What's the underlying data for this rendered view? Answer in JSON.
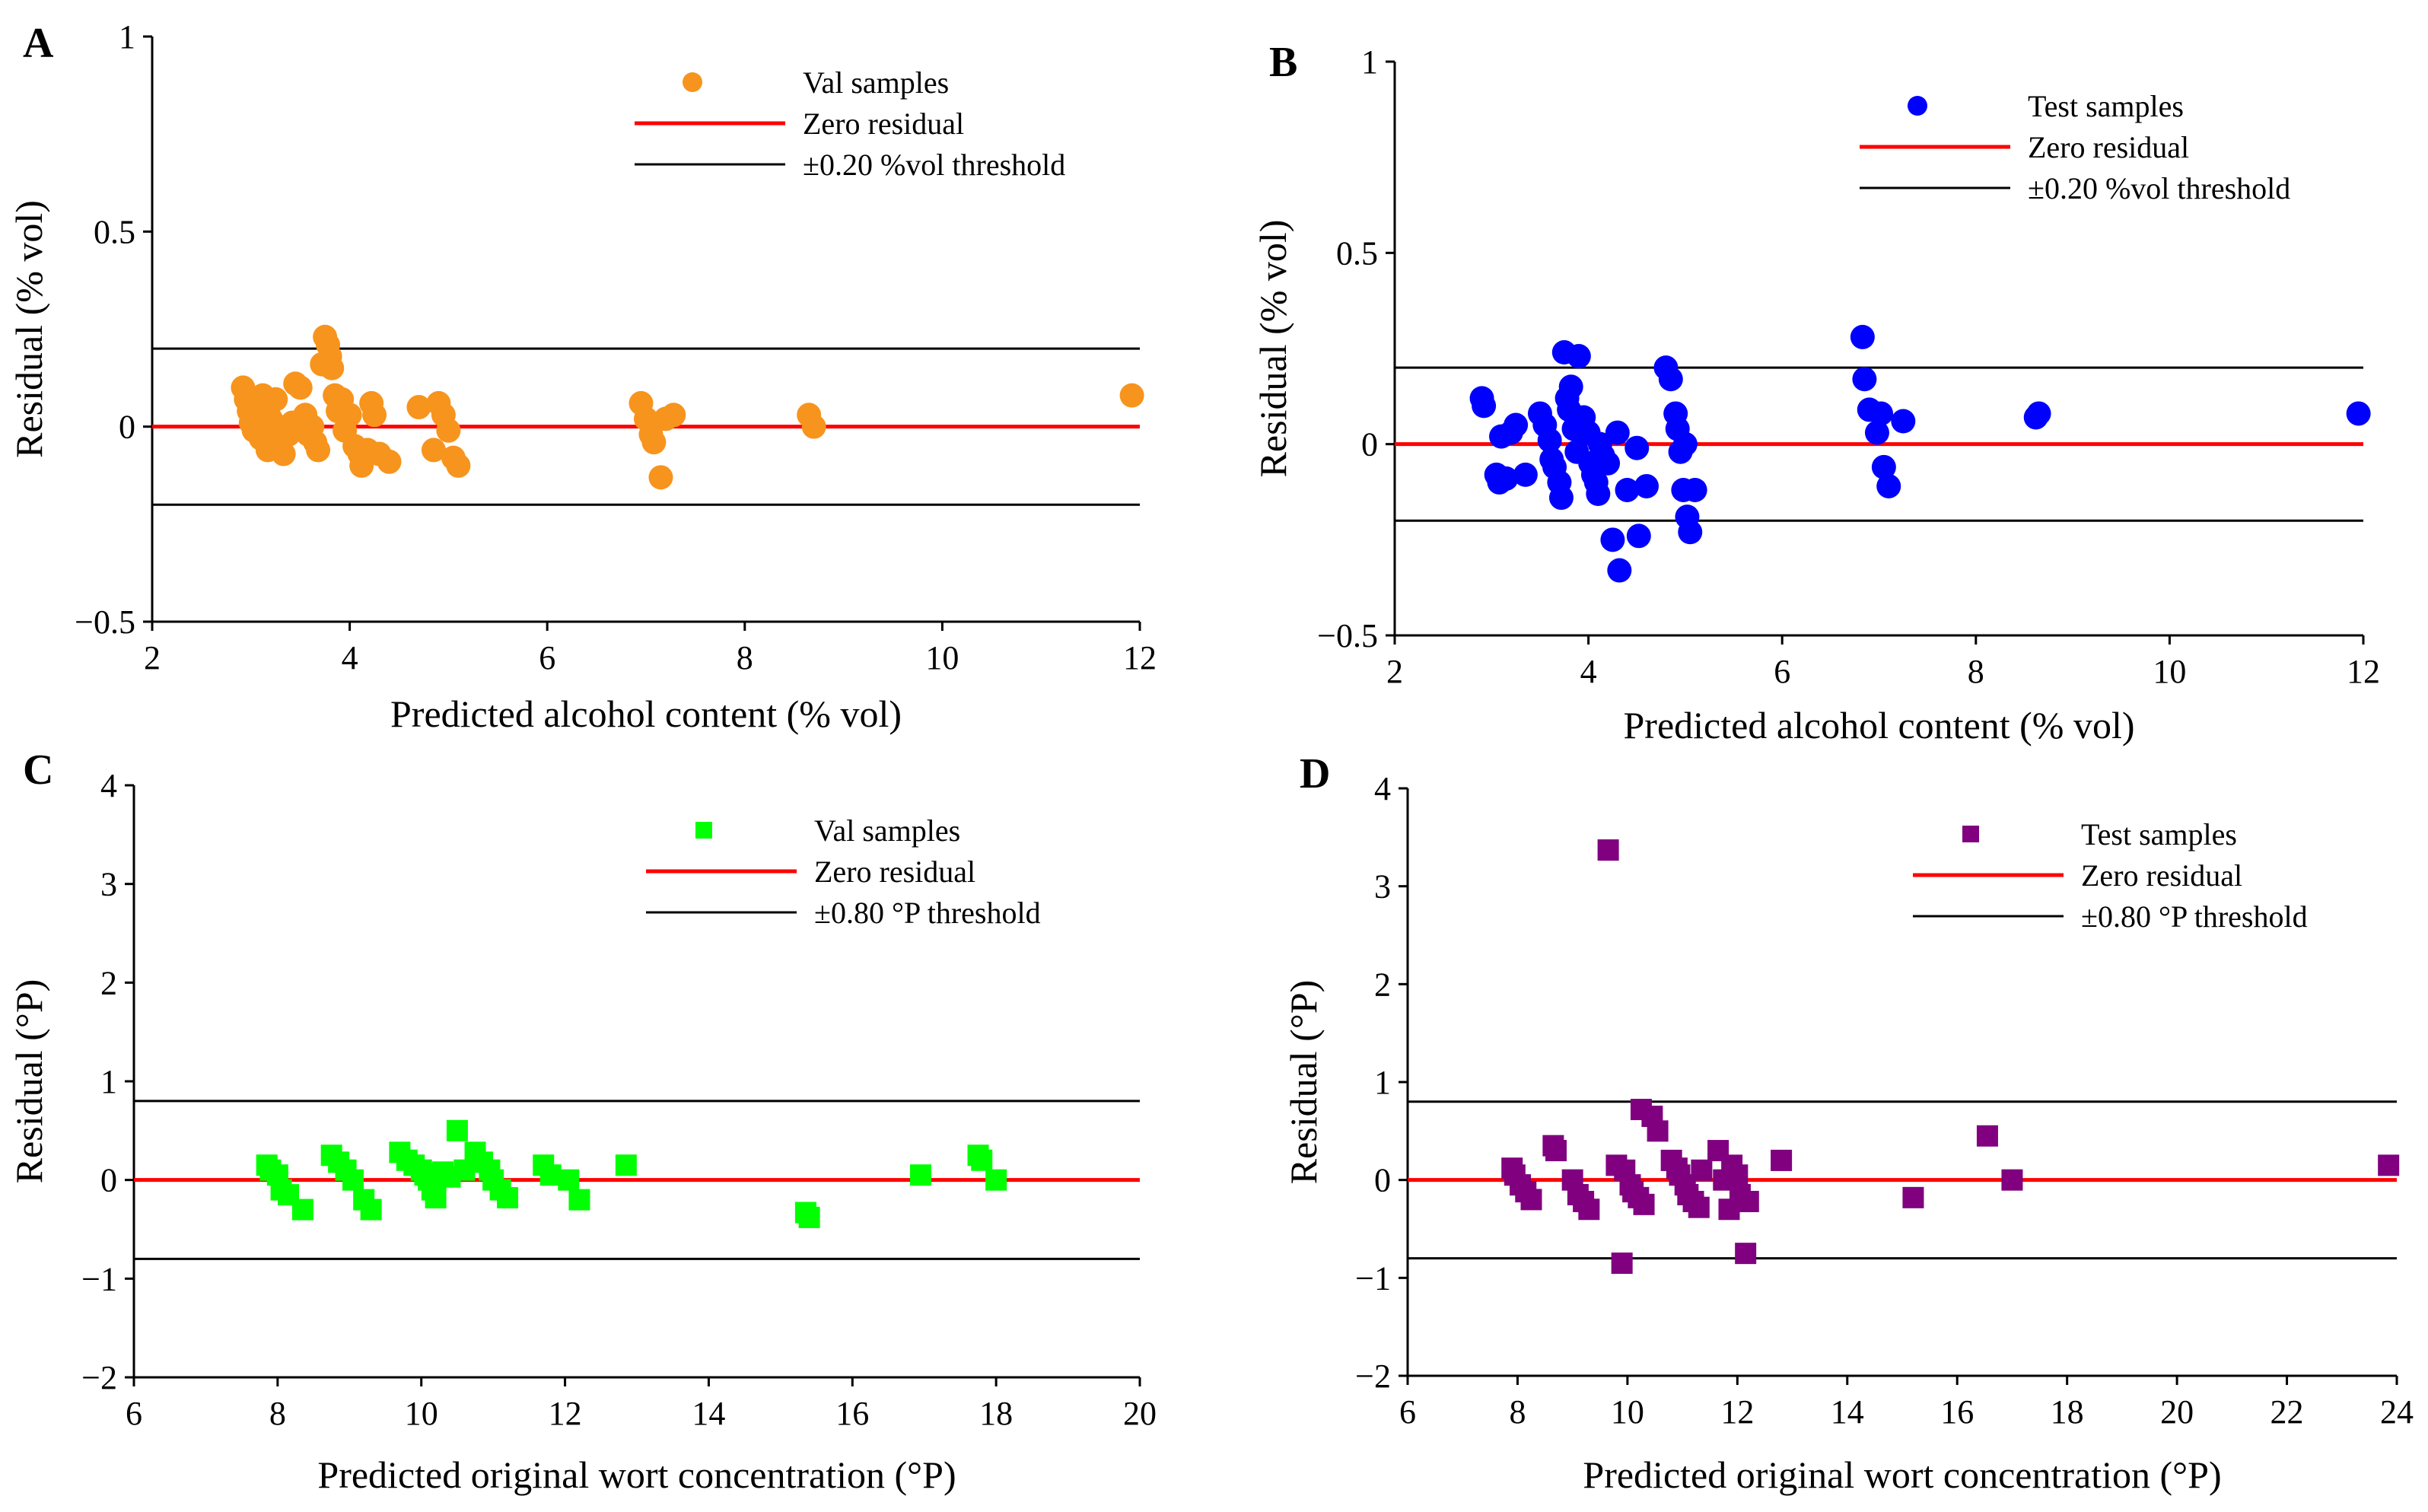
{
  "chart_data": [
    {
      "panel": "A",
      "type": "scatter",
      "xlabel": "Predicted alcohol content (% vol)",
      "ylabel": "Residual (% vol)",
      "xlim": [
        2,
        12
      ],
      "ylim": [
        -0.5,
        1
      ],
      "xticks": [
        "2",
        "4",
        "6",
        "8",
        "10",
        "12"
      ],
      "yticks": [
        "−0.5",
        "0",
        "0.5",
        "1"
      ],
      "legend": {
        "placement": "top-right",
        "series": "Val samples",
        "zero": "Zero residual",
        "threshold": "±0.20 %vol threshold"
      },
      "marker": "circle",
      "color": "#F7941D",
      "threshold": 0.2,
      "points": [
        [
          2.92,
          0.1
        ],
        [
          2.95,
          0.07
        ],
        [
          2.98,
          0.04
        ],
        [
          3.0,
          0.01
        ],
        [
          3.03,
          -0.01
        ],
        [
          3.05,
          0.06
        ],
        [
          3.08,
          0.03
        ],
        [
          3.1,
          -0.03
        ],
        [
          3.12,
          0.08
        ],
        [
          3.15,
          0.05
        ],
        [
          3.17,
          -0.06
        ],
        [
          3.2,
          0.02
        ],
        [
          3.22,
          -0.04
        ],
        [
          3.25,
          0.07
        ],
        [
          3.28,
          0.0
        ],
        [
          3.3,
          -0.03
        ],
        [
          3.33,
          -0.07
        ],
        [
          3.38,
          -0.02
        ],
        [
          3.42,
          0.01
        ],
        [
          3.45,
          0.11
        ],
        [
          3.5,
          0.1
        ],
        [
          3.55,
          0.03
        ],
        [
          3.58,
          -0.02
        ],
        [
          3.62,
          0.0
        ],
        [
          3.65,
          -0.04
        ],
        [
          3.68,
          -0.06
        ],
        [
          3.72,
          0.16
        ],
        [
          3.75,
          0.23
        ],
        [
          3.78,
          0.21
        ],
        [
          3.8,
          0.18
        ],
        [
          3.82,
          0.15
        ],
        [
          3.85,
          0.08
        ],
        [
          3.88,
          0.04
        ],
        [
          3.92,
          0.07
        ],
        [
          3.95,
          -0.01
        ],
        [
          4.0,
          0.03
        ],
        [
          4.05,
          -0.05
        ],
        [
          4.1,
          -0.07
        ],
        [
          4.12,
          -0.1
        ],
        [
          4.18,
          -0.06
        ],
        [
          4.22,
          0.06
        ],
        [
          4.25,
          0.03
        ],
        [
          4.3,
          -0.07
        ],
        [
          4.4,
          -0.09
        ],
        [
          4.7,
          0.05
        ],
        [
          4.85,
          -0.06
        ],
        [
          4.9,
          0.06
        ],
        [
          4.95,
          0.03
        ],
        [
          5.0,
          -0.01
        ],
        [
          5.05,
          -0.08
        ],
        [
          5.1,
          -0.1
        ],
        [
          6.95,
          0.06
        ],
        [
          7.0,
          0.02
        ],
        [
          7.05,
          -0.02
        ],
        [
          7.08,
          -0.04
        ],
        [
          7.15,
          -0.13
        ],
        [
          7.2,
          0.02
        ],
        [
          7.28,
          0.03
        ],
        [
          8.65,
          0.03
        ],
        [
          8.7,
          0.0
        ],
        [
          11.92,
          0.08
        ]
      ]
    },
    {
      "panel": "B",
      "type": "scatter",
      "xlabel": "Predicted alcohol content (% vol)",
      "ylabel": "Residual (% vol)",
      "xlim": [
        2,
        12
      ],
      "ylim": [
        -0.5,
        1
      ],
      "xticks": [
        "2",
        "4",
        "6",
        "8",
        "10",
        "12"
      ],
      "yticks": [
        "−0.5",
        "0",
        "0.5",
        "1"
      ],
      "legend": {
        "placement": "top-right",
        "series": "Test samples",
        "zero": "Zero residual",
        "threshold": "±0.20 %vol threshold"
      },
      "marker": "circle",
      "color": "#0000FF",
      "threshold": 0.2,
      "points": [
        [
          2.9,
          0.12
        ],
        [
          2.92,
          0.1
        ],
        [
          3.05,
          -0.08
        ],
        [
          3.08,
          -0.1
        ],
        [
          3.1,
          0.02
        ],
        [
          3.15,
          -0.09
        ],
        [
          3.2,
          0.03
        ],
        [
          3.25,
          0.05
        ],
        [
          3.35,
          -0.08
        ],
        [
          3.5,
          0.08
        ],
        [
          3.55,
          0.05
        ],
        [
          3.6,
          0.01
        ],
        [
          3.62,
          -0.04
        ],
        [
          3.65,
          -0.06
        ],
        [
          3.7,
          -0.1
        ],
        [
          3.72,
          -0.14
        ],
        [
          3.75,
          0.24
        ],
        [
          3.78,
          0.12
        ],
        [
          3.8,
          0.09
        ],
        [
          3.82,
          0.15
        ],
        [
          3.85,
          0.04
        ],
        [
          3.88,
          -0.02
        ],
        [
          3.9,
          0.23
        ],
        [
          3.95,
          0.07
        ],
        [
          4.0,
          0.03
        ],
        [
          4.02,
          -0.05
        ],
        [
          4.05,
          -0.08
        ],
        [
          4.08,
          -0.1
        ],
        [
          4.1,
          -0.13
        ],
        [
          4.12,
          0.0
        ],
        [
          4.15,
          -0.03
        ],
        [
          4.2,
          -0.05
        ],
        [
          4.25,
          -0.25
        ],
        [
          4.3,
          0.03
        ],
        [
          4.32,
          -0.33
        ],
        [
          4.4,
          -0.12
        ],
        [
          4.5,
          -0.01
        ],
        [
          4.52,
          -0.24
        ],
        [
          4.6,
          -0.11
        ],
        [
          4.8,
          0.2
        ],
        [
          4.85,
          0.17
        ],
        [
          4.9,
          0.08
        ],
        [
          4.92,
          0.04
        ],
        [
          4.95,
          -0.02
        ],
        [
          4.98,
          -0.12
        ],
        [
          5.0,
          0.0
        ],
        [
          5.02,
          -0.19
        ],
        [
          5.05,
          -0.23
        ],
        [
          5.1,
          -0.12
        ],
        [
          6.83,
          0.28
        ],
        [
          6.85,
          0.17
        ],
        [
          6.9,
          0.09
        ],
        [
          6.98,
          0.03
        ],
        [
          7.02,
          0.08
        ],
        [
          7.05,
          -0.06
        ],
        [
          7.1,
          -0.11
        ],
        [
          7.25,
          0.06
        ],
        [
          8.62,
          0.07
        ],
        [
          8.65,
          0.08
        ],
        [
          11.95,
          0.08
        ]
      ]
    },
    {
      "panel": "C",
      "type": "scatter",
      "xlabel": "Predicted original wort concentration (°P)",
      "ylabel": "Residual (°P)",
      "xlim": [
        6,
        20
      ],
      "ylim": [
        -2,
        4
      ],
      "xticks": [
        "6",
        "8",
        "10",
        "12",
        "14",
        "16",
        "18",
        "20"
      ],
      "yticks": [
        "−2",
        "−1",
        "0",
        "1",
        "2",
        "3",
        "4"
      ],
      "legend": {
        "placement": "top-right",
        "series": "Val samples",
        "zero": "Zero residual",
        "threshold": "±0.80 °P threshold"
      },
      "marker": "square",
      "color": "#00FF00",
      "threshold": 0.8,
      "points": [
        [
          7.85,
          0.15
        ],
        [
          7.9,
          0.1
        ],
        [
          8.0,
          0.05
        ],
        [
          8.05,
          -0.1
        ],
        [
          8.15,
          -0.15
        ],
        [
          8.35,
          -0.3
        ],
        [
          8.75,
          0.25
        ],
        [
          8.85,
          0.18
        ],
        [
          8.95,
          0.1
        ],
        [
          9.05,
          0.0
        ],
        [
          9.2,
          -0.2
        ],
        [
          9.3,
          -0.3
        ],
        [
          9.7,
          0.28
        ],
        [
          9.8,
          0.2
        ],
        [
          9.9,
          0.15
        ],
        [
          10.0,
          0.1
        ],
        [
          10.05,
          0.05
        ],
        [
          10.1,
          0.0
        ],
        [
          10.15,
          -0.1
        ],
        [
          10.2,
          -0.18
        ],
        [
          10.3,
          0.08
        ],
        [
          10.4,
          0.03
        ],
        [
          10.5,
          0.5
        ],
        [
          10.6,
          0.1
        ],
        [
          10.75,
          0.28
        ],
        [
          10.85,
          0.18
        ],
        [
          10.95,
          0.1
        ],
        [
          11.0,
          0.0
        ],
        [
          11.1,
          -0.1
        ],
        [
          11.2,
          -0.18
        ],
        [
          11.7,
          0.15
        ],
        [
          11.8,
          0.05
        ],
        [
          12.05,
          0.0
        ],
        [
          12.2,
          -0.2
        ],
        [
          12.85,
          0.15
        ],
        [
          15.35,
          -0.33
        ],
        [
          15.4,
          -0.38
        ],
        [
          16.95,
          0.05
        ],
        [
          17.75,
          0.25
        ],
        [
          17.8,
          0.2
        ],
        [
          18.0,
          0.0
        ]
      ]
    },
    {
      "panel": "D",
      "type": "scatter",
      "xlabel": "Predicted original wort concentration (°P)",
      "ylabel": "Residual (°P)",
      "xlim": [
        6,
        24
      ],
      "ylim": [
        -2,
        4
      ],
      "xticks": [
        "6",
        "8",
        "10",
        "12",
        "14",
        "16",
        "18",
        "20",
        "22",
        "24"
      ],
      "yticks": [
        "−2",
        "−1",
        "0",
        "1",
        "2",
        "3",
        "4"
      ],
      "legend": {
        "placement": "top-right",
        "series": "Test samples",
        "zero": "Zero residual",
        "threshold": "±0.80 °P threshold"
      },
      "marker": "square",
      "color": "#800080",
      "threshold": 0.8,
      "points": [
        [
          7.9,
          0.12
        ],
        [
          7.95,
          0.05
        ],
        [
          8.05,
          -0.05
        ],
        [
          8.15,
          -0.12
        ],
        [
          8.25,
          -0.2
        ],
        [
          8.65,
          0.35
        ],
        [
          8.7,
          0.3
        ],
        [
          9.0,
          0.0
        ],
        [
          9.1,
          -0.15
        ],
        [
          9.2,
          -0.22
        ],
        [
          9.3,
          -0.3
        ],
        [
          9.65,
          3.37
        ],
        [
          9.8,
          0.15
        ],
        [
          9.9,
          -0.85
        ],
        [
          9.95,
          0.1
        ],
        [
          10.05,
          -0.05
        ],
        [
          10.1,
          -0.12
        ],
        [
          10.2,
          -0.18
        ],
        [
          10.25,
          0.72
        ],
        [
          10.3,
          -0.25
        ],
        [
          10.45,
          0.65
        ],
        [
          10.55,
          0.5
        ],
        [
          10.8,
          0.2
        ],
        [
          10.9,
          0.12
        ],
        [
          10.95,
          0.05
        ],
        [
          11.05,
          -0.05
        ],
        [
          11.1,
          -0.15
        ],
        [
          11.2,
          -0.22
        ],
        [
          11.3,
          -0.28
        ],
        [
          11.35,
          0.1
        ],
        [
          11.65,
          0.3
        ],
        [
          11.75,
          0.0
        ],
        [
          11.85,
          -0.3
        ],
        [
          11.9,
          0.15
        ],
        [
          12.0,
          0.05
        ],
        [
          12.05,
          -0.15
        ],
        [
          12.15,
          -0.75
        ],
        [
          12.2,
          -0.22
        ],
        [
          12.8,
          0.2
        ],
        [
          15.2,
          -0.18
        ],
        [
          16.55,
          0.45
        ],
        [
          17.0,
          0.0
        ],
        [
          23.85,
          0.15
        ]
      ]
    }
  ]
}
